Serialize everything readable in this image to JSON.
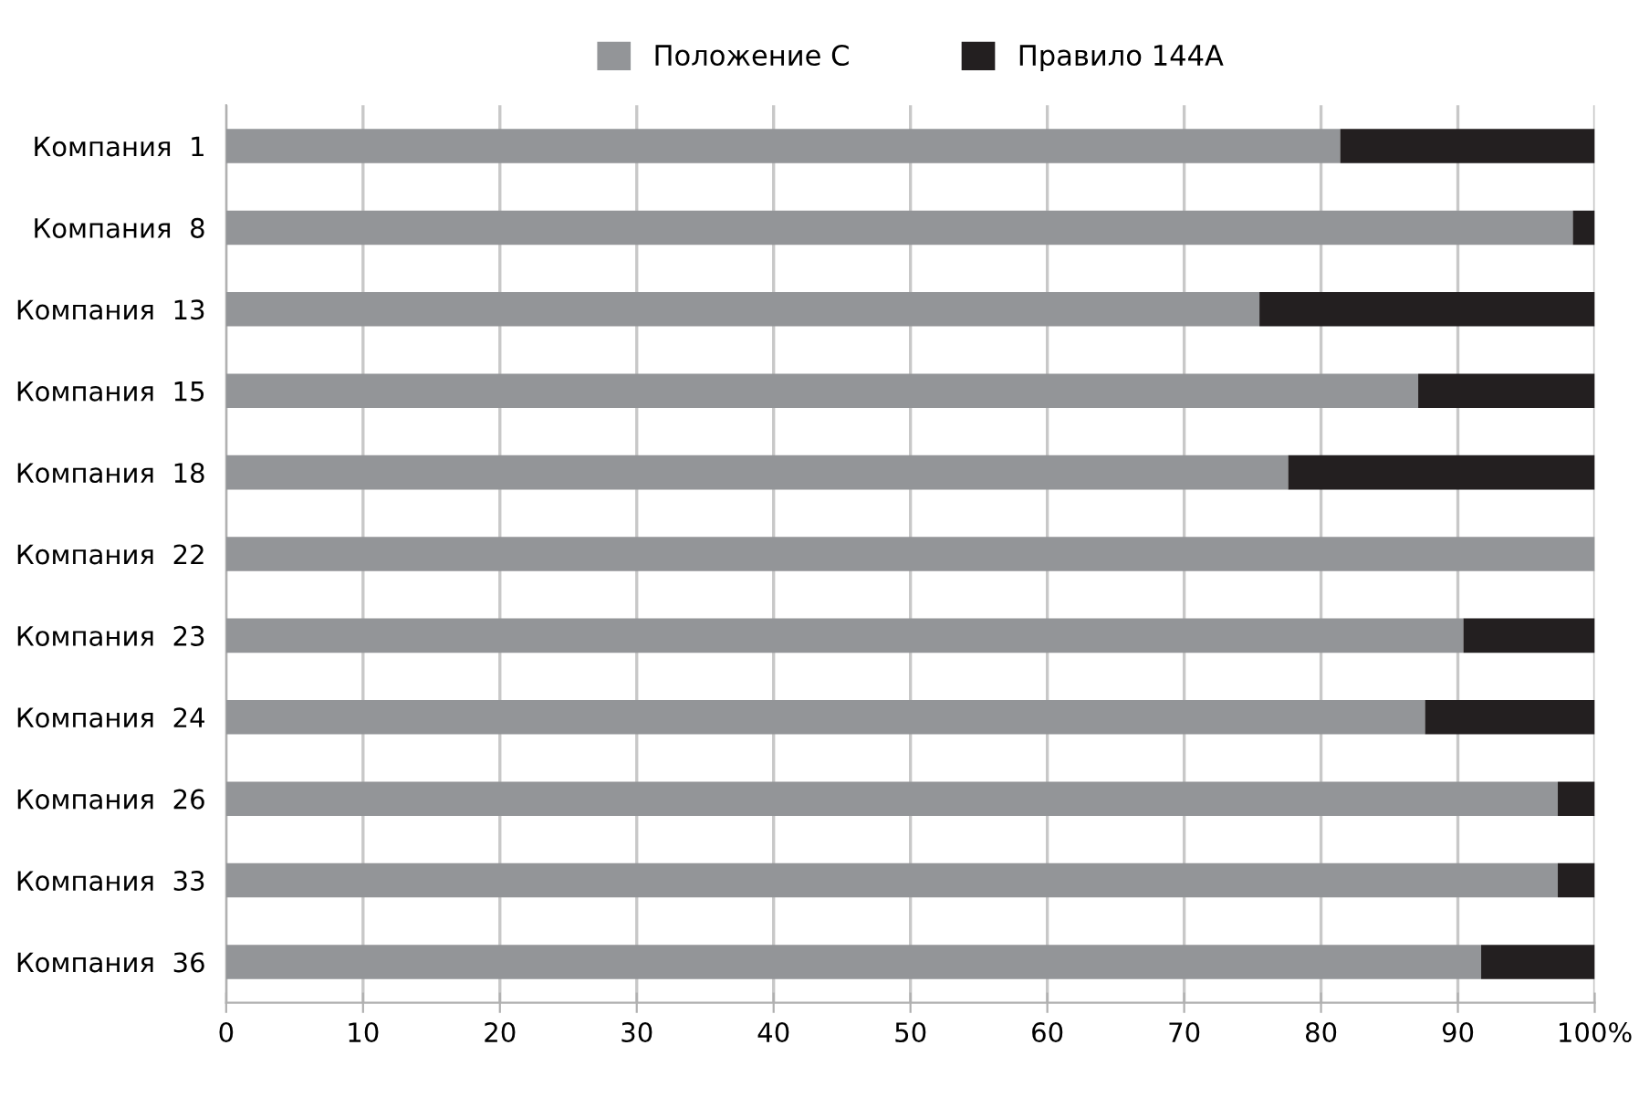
{
  "chart_data": {
    "type": "bar",
    "orientation": "horizontal",
    "stacked": true,
    "categories": [
      "Компания  1",
      "Компания  8",
      "Компания  13",
      "Компания  15",
      "Компания  18",
      "Компания  22",
      "Компания  23",
      "Компания  24",
      "Компания  26",
      "Компания  33",
      "Компания  36"
    ],
    "series": [
      {
        "name": "Положение С",
        "color": "#939598",
        "values": [
          81.4,
          98.4,
          75.5,
          87.1,
          77.6,
          100,
          90.4,
          87.6,
          97.3,
          97.3,
          91.7
        ]
      },
      {
        "name": "Правило 144А",
        "color": "#231f20",
        "values": [
          18.6,
          1.6,
          24.5,
          12.9,
          22.4,
          0,
          9.6,
          12.4,
          2.7,
          2.7,
          8.3
        ]
      }
    ],
    "xlim": [
      0,
      100
    ],
    "xticks": [
      0,
      10,
      20,
      30,
      40,
      50,
      60,
      70,
      80,
      90,
      {
        "value": 100,
        "label": "100%"
      }
    ],
    "grid": "x",
    "legend": "top"
  }
}
